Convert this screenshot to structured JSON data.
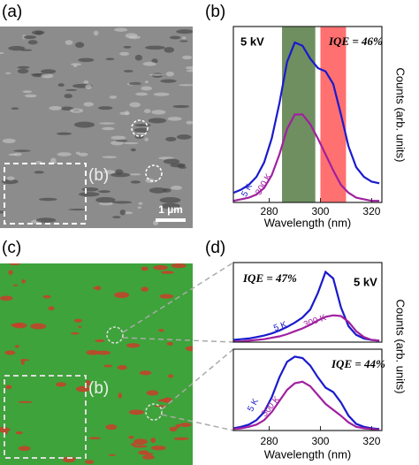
{
  "panel_labels": [
    "(a)",
    "(b)",
    "(c)",
    "(d)"
  ],
  "images": [
    {
      "inset_label": "(b)",
      "scale_bar": "1 µm"
    },
    {
      "inset_label": "(b)"
    }
  ],
  "chart_data": [
    {
      "type": "line",
      "x": [
        266,
        269,
        272,
        275,
        278,
        281,
        284,
        287,
        290,
        293,
        296,
        299,
        302,
        305,
        308,
        311,
        314,
        317,
        320,
        323
      ],
      "series": [
        {
          "name": "5 K",
          "color": "#1a1acc",
          "values": [
            0.06,
            0.08,
            0.11,
            0.16,
            0.25,
            0.4,
            0.62,
            0.88,
            1.0,
            0.98,
            0.9,
            0.84,
            0.82,
            0.74,
            0.55,
            0.35,
            0.22,
            0.16,
            0.13,
            0.12
          ]
        },
        {
          "name": "300 K",
          "color": "#a020a0",
          "values": [
            0.01,
            0.02,
            0.03,
            0.05,
            0.09,
            0.17,
            0.3,
            0.46,
            0.55,
            0.55,
            0.49,
            0.4,
            0.3,
            0.2,
            0.11,
            0.06,
            0.03,
            0.02,
            0.01,
            0.01
          ]
        }
      ],
      "bands": [
        {
          "range": [
            285,
            298
          ],
          "color": "#6f8f60"
        },
        {
          "range": [
            300,
            310
          ],
          "color": "#ff7070"
        }
      ],
      "annotations": [
        "5 kV",
        "IQE = 46%"
      ],
      "xlim": [
        266,
        324
      ],
      "ylim": [
        0,
        1.1
      ],
      "xticks": [
        280,
        300,
        320
      ],
      "x_label": "Wavelength (nm)",
      "y_label": "Counts (arb. units)"
    },
    {
      "type": "line",
      "x": [
        266,
        269,
        272,
        275,
        278,
        281,
        284,
        287,
        290,
        293,
        296,
        299,
        302,
        305,
        308,
        311,
        314,
        317,
        320,
        323
      ],
      "series": [
        {
          "name": "5 K",
          "color": "#1a1acc",
          "values": [
            0.03,
            0.04,
            0.05,
            0.07,
            0.09,
            0.12,
            0.16,
            0.21,
            0.27,
            0.34,
            0.45,
            0.68,
            0.97,
            0.88,
            0.48,
            0.22,
            0.1,
            0.05,
            0.03,
            0.02
          ]
        },
        {
          "name": "300 K",
          "color": "#a020a0",
          "values": [
            0.01,
            0.01,
            0.02,
            0.03,
            0.04,
            0.06,
            0.08,
            0.11,
            0.15,
            0.19,
            0.24,
            0.3,
            0.35,
            0.37,
            0.36,
            0.28,
            0.15,
            0.07,
            0.03,
            0.02
          ]
        }
      ],
      "annotations": [
        "IQE = 47%",
        "5 kV"
      ],
      "xlim": [
        266,
        324
      ],
      "ylim": [
        0,
        1.1
      ],
      "y_label": "Counts (arb. units)"
    },
    {
      "type": "line",
      "x": [
        266,
        269,
        272,
        275,
        278,
        281,
        284,
        287,
        290,
        293,
        296,
        299,
        302,
        305,
        308,
        311,
        314,
        317,
        320,
        323
      ],
      "series": [
        {
          "name": "5 K",
          "color": "#1a1acc",
          "values": [
            0.03,
            0.05,
            0.08,
            0.14,
            0.25,
            0.45,
            0.72,
            0.93,
            1.0,
            0.98,
            0.88,
            0.72,
            0.58,
            0.52,
            0.38,
            0.2,
            0.09,
            0.05,
            0.03,
            0.02
          ]
        },
        {
          "name": "300 K",
          "color": "#a020a0",
          "values": [
            0.02,
            0.03,
            0.05,
            0.08,
            0.14,
            0.25,
            0.4,
            0.55,
            0.64,
            0.66,
            0.6,
            0.48,
            0.36,
            0.28,
            0.2,
            0.11,
            0.05,
            0.03,
            0.02,
            0.01
          ]
        }
      ],
      "annotations": [
        "IQE = 44%"
      ],
      "xlim": [
        266,
        324
      ],
      "ylim": [
        0,
        1.1
      ],
      "xticks": [
        280,
        300,
        320
      ],
      "x_label": "Wavelength (nm)"
    }
  ]
}
